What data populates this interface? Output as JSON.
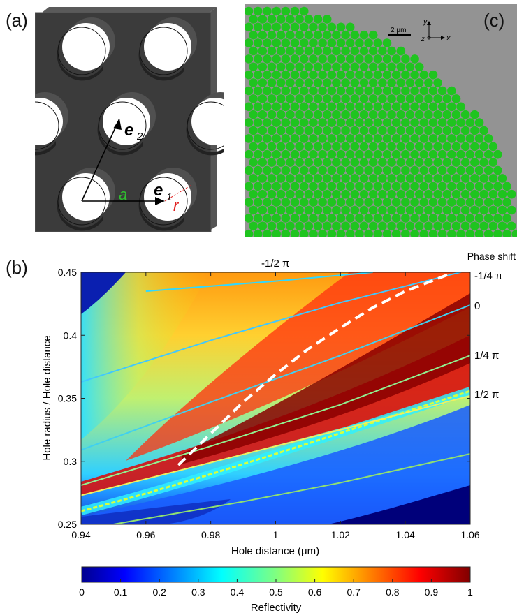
{
  "panels": {
    "a": {
      "label": "(a)",
      "vec_e2": "e",
      "vec_e2_sub": "2",
      "vec_e1": "e",
      "vec_e1_sub": "1",
      "lattice_const": "a",
      "radius": "r",
      "colors": {
        "slab": "#3a3a3a",
        "a_label": "#2fbf2f",
        "r_label": "#e02020"
      }
    },
    "c": {
      "label": "(c)",
      "scalebar": "2 μm",
      "axis_y": "y",
      "axis_z": "z",
      "axis_x": "x",
      "colors": {
        "background": "#939393",
        "holes": "#1fc41f"
      }
    },
    "b": {
      "label": "(b)",
      "phase_shift_title": "Phase shift",
      "phase_labels": [
        {
          "text": "-1/2 π",
          "place": "top"
        },
        {
          "text": "-1/4 π",
          "place": "right"
        },
        {
          "text": "0",
          "place": "right"
        },
        {
          "text": "1/4 π",
          "place": "right"
        },
        {
          "text": "1/2 π",
          "place": "right"
        }
      ],
      "colorbar_label": "Reflectivity",
      "colorbar_ticks": [
        "0",
        "0.1",
        "0.2",
        "0.3",
        "0.4",
        "0.5",
        "0.6",
        "0.7",
        "0.8",
        "0.9",
        "1"
      ]
    }
  },
  "chart_data": {
    "type": "heatmap",
    "xlabel": "Hole distance (μm)",
    "ylabel": "Hole radius / Hole distance",
    "xlim": [
      0.94,
      1.06
    ],
    "ylim": [
      0.25,
      0.45
    ],
    "x_ticks": [
      "0.94",
      "0.96",
      "0.98",
      "1",
      "1.02",
      "1.04",
      "1.06"
    ],
    "y_ticks": [
      "0.25",
      "0.3",
      "0.35",
      "0.4",
      "0.45"
    ],
    "colorscale": "jet",
    "value_range": [
      0,
      1
    ],
    "contours": [
      {
        "name": "-1/2 π",
        "x": [
          0.96,
          1.0,
          1.03
        ],
        "y": [
          0.435,
          0.443,
          0.45
        ]
      },
      {
        "name": "-1/4 π",
        "x": [
          0.94,
          0.98,
          1.02,
          1.06
        ],
        "y": [
          0.363,
          0.396,
          0.426,
          0.452
        ]
      },
      {
        "name": "0",
        "x": [
          0.94,
          0.98,
          1.02,
          1.06
        ],
        "y": [
          0.309,
          0.347,
          0.384,
          0.424
        ]
      },
      {
        "name": "1/4 π",
        "x": [
          0.94,
          0.98,
          1.02,
          1.06
        ],
        "y": [
          0.281,
          0.312,
          0.345,
          0.384
        ]
      },
      {
        "name": "1/2 π",
        "x": [
          0.94,
          0.98,
          1.02,
          1.06
        ],
        "y": [
          0.273,
          0.299,
          0.325,
          0.352
        ]
      },
      {
        "name": "",
        "x": [
          0.95,
          0.99,
          1.02,
          1.06
        ],
        "y": [
          0.25,
          0.268,
          0.283,
          0.306
        ]
      }
    ],
    "dashed_path": {
      "x": [
        0.97,
        0.98,
        0.99,
        1.0,
        1.01,
        1.02,
        1.03,
        1.04,
        1.054
      ],
      "y": [
        0.297,
        0.322,
        0.347,
        0.369,
        0.389,
        0.406,
        0.422,
        0.435,
        0.449
      ]
    }
  }
}
